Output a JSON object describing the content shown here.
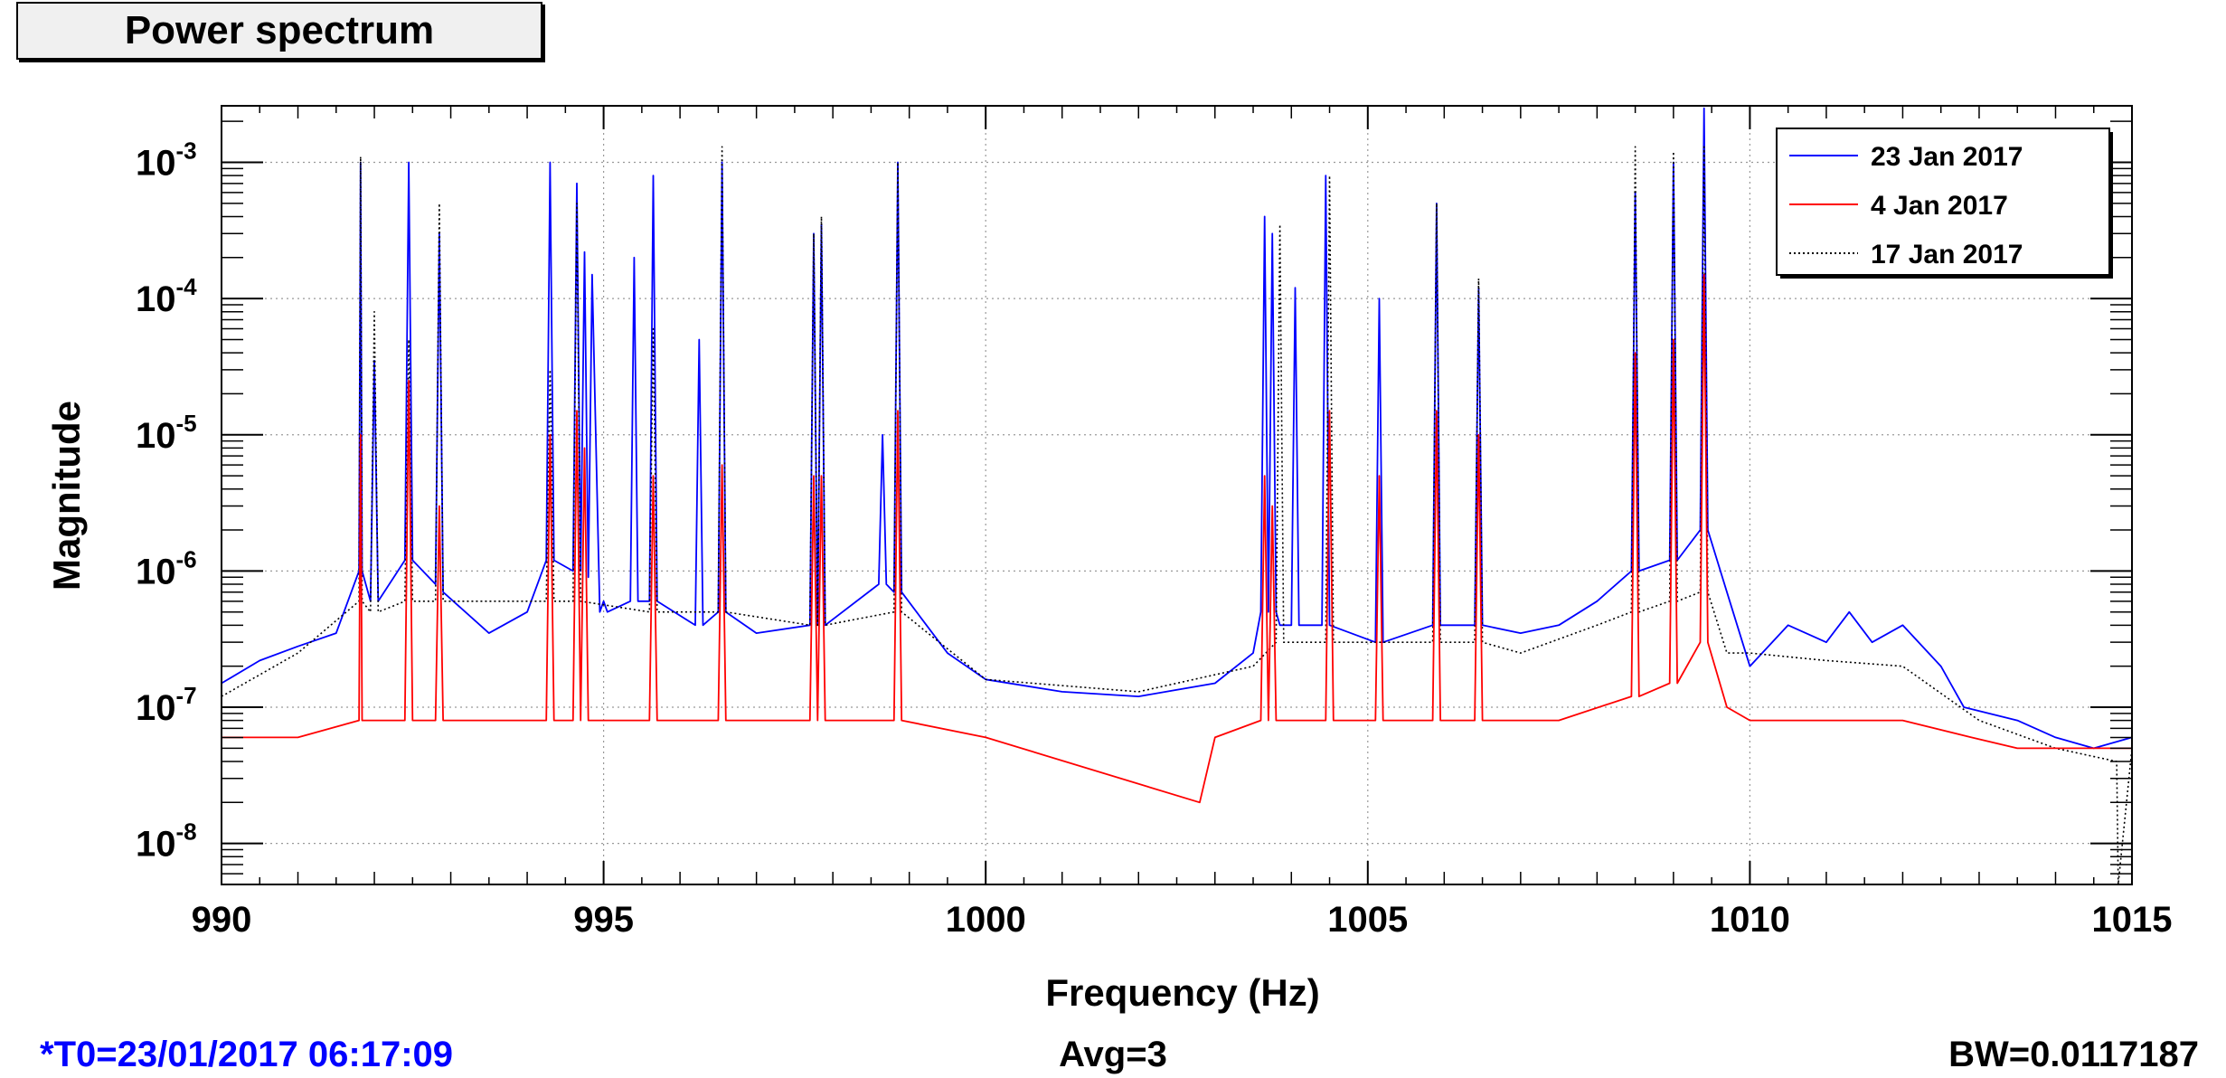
{
  "title": "Power spectrum",
  "footer": {
    "t0": "*T0=23/01/2017 06:17:09",
    "avg": "Avg=3",
    "bw": "BW=0.0117187"
  },
  "colors": {
    "series1": "#0000ff",
    "series2": "#ff0000",
    "series3": "#000000"
  },
  "chart_data": {
    "type": "line",
    "xlabel": "Frequency (Hz)",
    "ylabel": "Magnitude",
    "xlim": [
      990,
      1015
    ],
    "ylim": [
      5e-09,
      0.0026
    ],
    "yscale": "log",
    "grid": true,
    "legend_position": "top-right",
    "x_ticks": [
      990,
      995,
      1000,
      1005,
      1010,
      1015
    ],
    "y_ticks": [
      {
        "value": 1e-08,
        "base": "10",
        "exp": "-8"
      },
      {
        "value": 1e-07,
        "base": "10",
        "exp": "-7"
      },
      {
        "value": 1e-06,
        "base": "10",
        "exp": "-6"
      },
      {
        "value": 1e-05,
        "base": "10",
        "exp": "-5"
      },
      {
        "value": 0.0001,
        "base": "10",
        "exp": "-4"
      },
      {
        "value": 0.001,
        "base": "10",
        "exp": "-3"
      }
    ],
    "series": [
      {
        "name": "23 Jan 2017",
        "color": "#0000ff",
        "style": "solid",
        "x": [
          990,
          990.5,
          991,
          991.5,
          991.8,
          991.82,
          991.84,
          991.95,
          992.0,
          992.05,
          992.4,
          992.45,
          992.5,
          992.8,
          992.85,
          992.9,
          993.5,
          994.0,
          994.25,
          994.3,
          994.35,
          994.6,
          994.65,
          994.7,
          994.75,
          994.8,
          994.85,
          994.95,
          995.0,
          995.05,
          995.35,
          995.4,
          995.45,
          995.6,
          995.65,
          995.7,
          996.2,
          996.25,
          996.3,
          996.5,
          996.55,
          996.6,
          997.0,
          997.7,
          997.75,
          997.8,
          997.85,
          997.9,
          998.6,
          998.65,
          998.7,
          998.8,
          998.85,
          998.9,
          999.5,
          1000,
          1001,
          1002,
          1003,
          1003.5,
          1003.6,
          1003.65,
          1003.7,
          1003.75,
          1003.8,
          1003.85,
          1004.0,
          1004.05,
          1004.1,
          1004.4,
          1004.45,
          1004.5,
          1005.1,
          1005.15,
          1005.2,
          1005.85,
          1005.9,
          1005.95,
          1006.4,
          1006.45,
          1006.5,
          1007,
          1007.5,
          1008.0,
          1008.45,
          1008.5,
          1008.55,
          1008.95,
          1009.0,
          1009.05,
          1009.35,
          1009.4,
          1009.45,
          1009.7,
          1010,
          1010.5,
          1011,
          1011.3,
          1011.6,
          1012.0,
          1012.5,
          1012.8,
          1013.5,
          1014,
          1014.5,
          1015
        ],
        "y": [
          1.5e-07,
          2.2e-07,
          2.8e-07,
          3.5e-07,
          1e-06,
          0.001,
          1e-06,
          6e-07,
          3.5e-05,
          6e-07,
          1.2e-06,
          0.001,
          1.2e-06,
          8e-07,
          0.0003,
          7e-07,
          3.5e-07,
          5e-07,
          1.2e-06,
          0.001,
          1.2e-06,
          1e-06,
          0.0007,
          1e-06,
          0.00022,
          9e-07,
          0.00015,
          5e-07,
          6e-07,
          5e-07,
          6e-07,
          0.0002,
          6e-07,
          6e-07,
          0.0008,
          6e-07,
          4e-07,
          5e-05,
          4e-07,
          5e-07,
          0.001,
          5e-07,
          3.5e-07,
          4e-07,
          0.0003,
          4e-07,
          0.00035,
          4e-07,
          8e-07,
          1e-05,
          8e-07,
          7e-07,
          0.001,
          7e-07,
          2.5e-07,
          1.6e-07,
          1.3e-07,
          1.2e-07,
          1.5e-07,
          2.5e-07,
          5e-07,
          0.0004,
          5e-07,
          0.0003,
          5e-07,
          4e-07,
          4e-07,
          0.00012,
          4e-07,
          4e-07,
          0.0008,
          4e-07,
          3e-07,
          0.0001,
          3e-07,
          4e-07,
          0.0005,
          4e-07,
          4e-07,
          0.00012,
          4e-07,
          3.5e-07,
          4e-07,
          6e-07,
          1e-06,
          0.0006,
          1e-06,
          1.2e-06,
          0.001,
          1.2e-06,
          2e-06,
          0.0025,
          2e-06,
          7e-07,
          2e-07,
          4e-07,
          3e-07,
          5e-07,
          3e-07,
          4e-07,
          2e-07,
          1e-07,
          8e-08,
          6e-08,
          5e-08,
          6e-08
        ]
      },
      {
        "name": "4 Jan 2017",
        "color": "#ff0000",
        "style": "solid",
        "x": [
          990,
          991,
          991.8,
          991.82,
          991.84,
          992.4,
          992.45,
          992.5,
          992.8,
          992.85,
          992.9,
          994.25,
          994.3,
          994.35,
          994.6,
          994.65,
          994.7,
          994.75,
          994.8,
          994.85,
          995.6,
          995.65,
          995.7,
          996.5,
          996.55,
          996.6,
          997.7,
          997.75,
          997.8,
          997.85,
          997.9,
          998.8,
          998.85,
          998.9,
          1000,
          1002.8,
          1003,
          1003.6,
          1003.65,
          1003.7,
          1003.75,
          1003.8,
          1004.45,
          1004.5,
          1004.55,
          1005.1,
          1005.15,
          1005.2,
          1005.85,
          1005.9,
          1005.95,
          1006.4,
          1006.45,
          1006.5,
          1007.5,
          1008.45,
          1008.5,
          1008.55,
          1008.95,
          1009.0,
          1009.05,
          1009.35,
          1009.4,
          1009.45,
          1009.7,
          1010,
          1011,
          1012,
          1012.9,
          1013.5,
          1015
        ],
        "y": [
          6e-08,
          6e-08,
          8e-08,
          1e-05,
          8e-08,
          8e-08,
          2.5e-05,
          8e-08,
          8e-08,
          3e-06,
          8e-08,
          8e-08,
          1e-05,
          8e-08,
          8e-08,
          1.5e-05,
          8e-08,
          8e-06,
          8e-08,
          8e-08,
          8e-08,
          5e-06,
          8e-08,
          8e-08,
          6e-06,
          8e-08,
          8e-08,
          5e-06,
          8e-08,
          5e-06,
          8e-08,
          8e-08,
          1.5e-05,
          8e-08,
          6e-08,
          2e-08,
          6e-08,
          8e-08,
          5e-06,
          8e-08,
          3e-06,
          8e-08,
          8e-08,
          1.5e-05,
          8e-08,
          8e-08,
          5e-06,
          8e-08,
          8e-08,
          1.5e-05,
          8e-08,
          8e-08,
          1e-05,
          8e-08,
          8e-08,
          1.2e-07,
          4e-05,
          1.2e-07,
          1.5e-07,
          5e-05,
          1.5e-07,
          3e-07,
          0.00015,
          3e-07,
          1e-07,
          8e-08,
          8e-08,
          8e-08,
          6e-08,
          5e-08,
          5e-08
        ]
      },
      {
        "name": "17 Jan 2017",
        "color": "#000000",
        "style": "dotted",
        "x": [
          990,
          991,
          991.8,
          991.82,
          991.84,
          991.95,
          992.0,
          992.05,
          992.4,
          992.45,
          992.5,
          992.8,
          992.85,
          992.9,
          994.25,
          994.3,
          994.35,
          994.6,
          994.65,
          994.7,
          995.6,
          995.65,
          995.7,
          996.5,
          996.55,
          996.6,
          997.7,
          997.75,
          997.8,
          997.85,
          997.9,
          998.8,
          998.85,
          998.9,
          1000,
          1002,
          1003.5,
          1003.8,
          1003.85,
          1003.9,
          1004.45,
          1004.5,
          1004.55,
          1005.85,
          1005.9,
          1005.95,
          1006.4,
          1006.45,
          1006.5,
          1007,
          1008.0,
          1008.45,
          1008.5,
          1008.55,
          1008.95,
          1009.0,
          1009.05,
          1009.35,
          1009.4,
          1009.45,
          1009.7,
          1010,
          1011,
          1012,
          1013,
          1014,
          1014.8,
          1014.82,
          1015
        ],
        "y": [
          1.2e-07,
          2.5e-07,
          6e-07,
          0.0011,
          6e-07,
          5e-07,
          8e-05,
          5e-07,
          6e-07,
          5e-05,
          6e-07,
          6e-07,
          0.0005,
          6e-07,
          6e-07,
          3e-05,
          6e-07,
          6e-07,
          0.0005,
          6e-07,
          5e-07,
          6e-05,
          5e-07,
          5e-07,
          0.0013,
          5e-07,
          4e-07,
          0.0003,
          4e-07,
          0.0004,
          4e-07,
          5e-07,
          0.001,
          5e-07,
          1.6e-07,
          1.3e-07,
          2e-07,
          3e-07,
          0.00035,
          3e-07,
          3e-07,
          0.0008,
          3e-07,
          3e-07,
          0.0005,
          3e-07,
          3e-07,
          0.00014,
          3e-07,
          2.5e-07,
          4e-07,
          5e-07,
          0.0013,
          5e-07,
          6e-07,
          0.0012,
          6e-07,
          7e-07,
          0.0013,
          7e-07,
          2.5e-07,
          2.5e-07,
          2.2e-07,
          2e-07,
          8e-08,
          5e-08,
          4e-08,
          5e-09,
          5e-08
        ]
      }
    ]
  }
}
